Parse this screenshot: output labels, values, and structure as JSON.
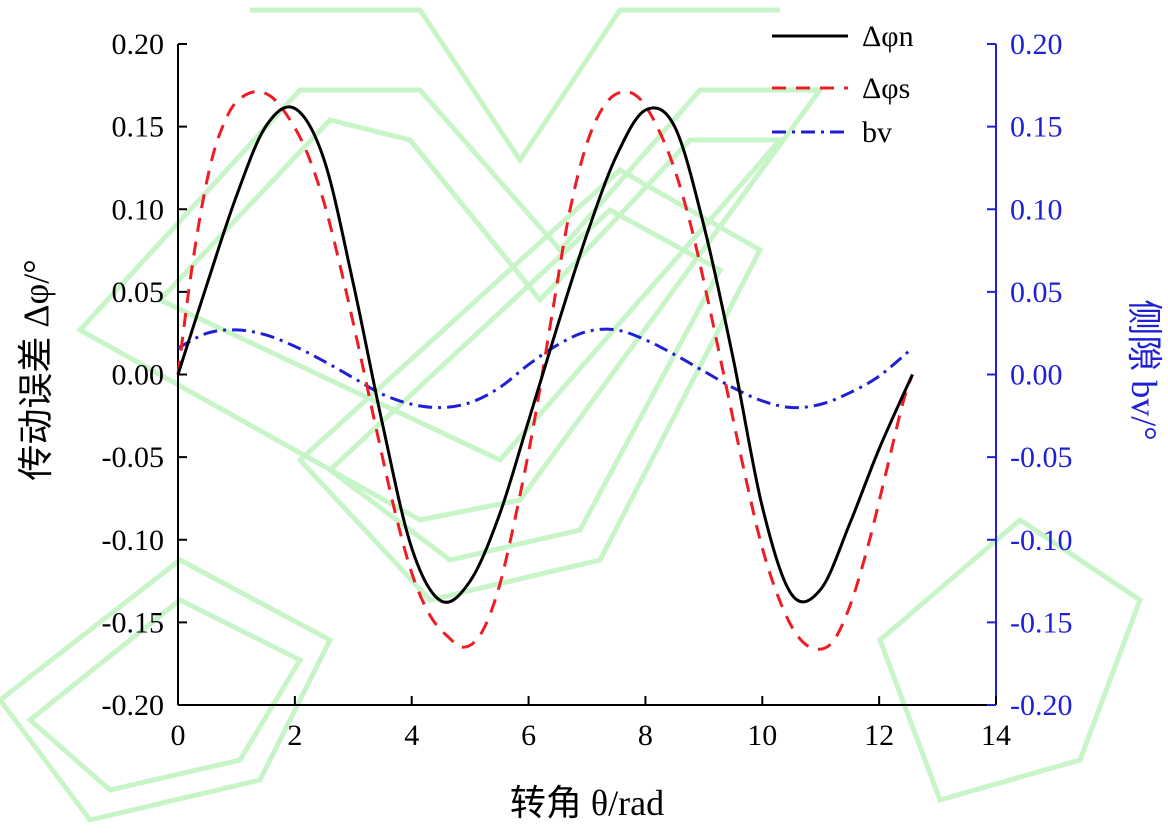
{
  "chart_data": {
    "type": "line",
    "xlabel": "转角 θ/rad",
    "ylabel_left": "传动误差 Δφ/°",
    "ylabel_right": "侧隙 bv/°",
    "xlim": [
      0,
      14
    ],
    "ylim_left": [
      -0.2,
      0.2
    ],
    "ylim_right": [
      -0.2,
      0.2
    ],
    "x_ticks": [
      "0",
      "2",
      "4",
      "6",
      "8",
      "10",
      "12",
      "14"
    ],
    "y_ticks_left": [
      "0.20",
      "0.15",
      "0.10",
      "0.05",
      "0.00",
      "-0.05",
      "-0.10",
      "-0.15",
      "-0.20"
    ],
    "y_ticks_right": [
      "0.20",
      "0.15",
      "0.10",
      "0.05",
      "0.00",
      "-0.05",
      "-0.10",
      "-0.15",
      "-0.20"
    ],
    "legend_position": "top-right",
    "grid": false,
    "colors": {
      "phi_n": "#000000",
      "phi_s": "#ee1c24",
      "bv": "#1f1fd6",
      "right_axis": "#1f1fd6"
    },
    "series": [
      {
        "name": "Δφn",
        "style": "solid",
        "x": [
          0,
          0.5,
          1.0,
          1.5,
          2.0,
          2.5,
          3.0,
          3.5,
          4.0,
          4.5,
          5.0,
          5.5,
          6.0,
          6.5,
          7.0,
          7.5,
          8.0,
          8.5,
          9.0,
          9.5,
          10.0,
          10.5,
          11.0,
          11.5,
          12.0,
          12.57
        ],
        "y": [
          0.0,
          0.055,
          0.108,
          0.15,
          0.161,
          0.13,
          0.055,
          -0.03,
          -0.105,
          -0.137,
          -0.125,
          -0.085,
          -0.028,
          0.03,
          0.085,
          0.132,
          0.16,
          0.15,
          0.09,
          0.01,
          -0.08,
          -0.133,
          -0.13,
          -0.09,
          -0.045,
          0.0
        ]
      },
      {
        "name": "Δφs",
        "style": "dashed",
        "x": [
          0,
          0.2,
          0.4,
          0.6,
          0.8,
          1.0,
          1.3,
          1.6,
          1.9,
          2.2,
          2.5,
          2.8,
          3.1,
          3.4,
          3.7,
          4.0,
          4.3,
          4.6,
          4.9,
          5.2,
          5.5,
          5.8,
          6.1,
          6.4,
          6.7,
          7.0,
          7.3,
          7.6,
          7.9,
          8.2,
          8.5,
          8.8,
          9.1,
          9.4,
          9.7,
          10.0,
          10.3,
          10.6,
          10.9,
          11.2,
          11.5,
          11.8,
          12.1,
          12.4,
          12.57
        ],
        "y": [
          0.0,
          0.055,
          0.1,
          0.133,
          0.153,
          0.165,
          0.171,
          0.168,
          0.155,
          0.135,
          0.104,
          0.062,
          0.015,
          -0.034,
          -0.081,
          -0.12,
          -0.145,
          -0.158,
          -0.165,
          -0.156,
          -0.128,
          -0.082,
          -0.028,
          0.036,
          0.098,
          0.14,
          0.163,
          0.171,
          0.167,
          0.15,
          0.124,
          0.087,
          0.04,
          -0.01,
          -0.06,
          -0.105,
          -0.137,
          -0.158,
          -0.166,
          -0.162,
          -0.14,
          -0.105,
          -0.062,
          -0.018,
          0.0
        ]
      },
      {
        "name": "bv",
        "style": "dashdot",
        "x": [
          0,
          0.5,
          1.0,
          1.5,
          2.0,
          2.5,
          3.0,
          3.5,
          4.0,
          4.5,
          5.0,
          5.5,
          6.0,
          6.5,
          7.0,
          7.5,
          8.0,
          8.5,
          9.0,
          9.5,
          10.0,
          10.5,
          11.0,
          11.5,
          12.0,
          12.57
        ],
        "y": [
          0.016,
          0.025,
          0.027,
          0.024,
          0.017,
          0.008,
          -0.002,
          -0.012,
          -0.018,
          -0.02,
          -0.017,
          -0.008,
          0.006,
          0.018,
          0.026,
          0.027,
          0.021,
          0.012,
          0.002,
          -0.008,
          -0.016,
          -0.02,
          -0.018,
          -0.011,
          -0.001,
          0.016
        ]
      }
    ]
  }
}
